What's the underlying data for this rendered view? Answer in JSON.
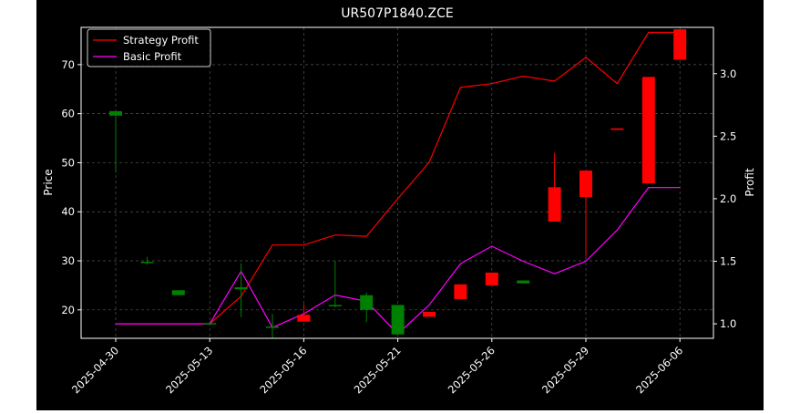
{
  "chart_data": {
    "type": "candlestick",
    "title": "UR507P1840.ZCE",
    "xlabel": "",
    "ylabel_left": "Price",
    "ylabel_right": "Profit",
    "grid": true,
    "legend_position": "top-left",
    "x_tick_labels": [
      "2025-04-30",
      "2025-05-13",
      "2025-05-16",
      "2025-05-21",
      "2025-05-26",
      "2025-05-29",
      "2025-06-06"
    ],
    "y_left": {
      "ticks": [
        20,
        30,
        40,
        50,
        60,
        70
      ],
      "range": [
        14.2,
        77.6
      ]
    },
    "y_right": {
      "ticks": [
        1.0,
        1.5,
        2.0,
        2.5,
        3.0
      ],
      "range": [
        0.884,
        3.37
      ]
    },
    "up_color": "#008000",
    "down_color": "#ff0000",
    "candles": [
      {
        "i": 0,
        "open": 59.6,
        "close": 60.5,
        "high": 60.5,
        "low": 48.0
      },
      {
        "i": 1,
        "open": 29.8,
        "close": 29.8,
        "high": 30.8,
        "low": 29.2
      },
      {
        "i": 2,
        "open": 23.0,
        "close": 24.0,
        "high": 24.0,
        "low": 23.0
      },
      {
        "i": 3,
        "open": 17.3,
        "close": 17.3,
        "high": 17.6,
        "low": 16.8
      },
      {
        "i": 4,
        "open": 24.2,
        "close": 24.6,
        "high": 29.5,
        "low": 18.5
      },
      {
        "i": 5,
        "open": 16.6,
        "close": 16.6,
        "high": 19.2,
        "low": 14.3
      },
      {
        "i": 6,
        "open": 19.0,
        "close": 17.6,
        "high": 21.2,
        "low": 17.6
      },
      {
        "i": 7,
        "open": 21.0,
        "close": 21.0,
        "high": 30.0,
        "low": 20.5
      },
      {
        "i": 8,
        "open": 20.0,
        "close": 23.0,
        "high": 23.5,
        "low": 17.5
      },
      {
        "i": 9,
        "open": 15.0,
        "close": 21.0,
        "high": 21.0,
        "low": 15.0
      },
      {
        "i": 10,
        "open": 19.6,
        "close": 18.6,
        "high": 19.6,
        "low": 18.6
      },
      {
        "i": 11,
        "open": 25.2,
        "close": 22.2,
        "high": 25.2,
        "low": 22.2
      },
      {
        "i": 12,
        "open": 27.6,
        "close": 25.0,
        "high": 27.6,
        "low": 25.0
      },
      {
        "i": 13,
        "open": 25.4,
        "close": 26.0,
        "high": 26.0,
        "low": 25.4
      },
      {
        "i": 14,
        "open": 45.0,
        "close": 38.0,
        "high": 52.0,
        "low": 38.0
      },
      {
        "i": 15,
        "open": 48.4,
        "close": 43.0,
        "high": 48.4,
        "low": 30.8
      },
      {
        "i": 16,
        "open": 57.0,
        "close": 56.7,
        "high": 57.0,
        "low": 56.7
      },
      {
        "i": 17,
        "open": 67.5,
        "close": 45.8,
        "high": 67.5,
        "low": 45.8
      },
      {
        "i": 18,
        "open": 77.2,
        "close": 71.0,
        "high": 77.2,
        "low": 71.0
      }
    ],
    "series": [
      {
        "name": "Strategy Profit",
        "color": "#ff0000",
        "values": [
          1.0,
          1.0,
          1.0,
          1.0,
          1.22,
          1.63,
          1.63,
          1.71,
          1.7,
          2.0,
          2.29,
          2.89,
          2.92,
          2.98,
          2.94,
          3.13,
          2.92,
          3.33,
          3.33
        ]
      },
      {
        "name": "Basic Profit",
        "color": "#ff00ff",
        "values": [
          1.0,
          1.0,
          1.0,
          1.0,
          1.42,
          0.97,
          1.08,
          1.23,
          1.18,
          0.92,
          1.15,
          1.48,
          1.62,
          1.5,
          1.4,
          1.5,
          1.75,
          2.09,
          2.09
        ]
      }
    ]
  }
}
